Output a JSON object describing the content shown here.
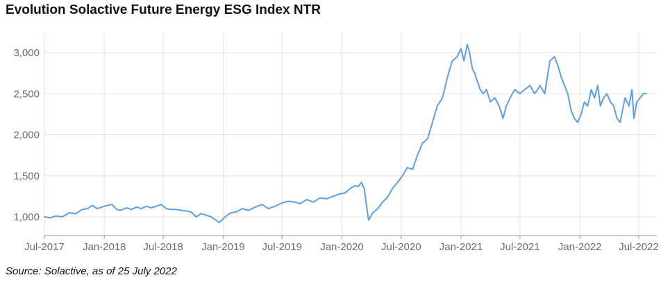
{
  "chart_data": {
    "type": "line",
    "title": "Evolution Solactive Future Energy ESG Index NTR",
    "source": "Source: Solactive, as of 25 July 2022",
    "xlabel": "",
    "ylabel": "",
    "ylim": [
      850,
      3150
    ],
    "grid": true,
    "legend": "none",
    "line_color": "#5b9ee9",
    "grid_color": "#e3e3e3",
    "y_ticks": [
      {
        "value": 1000,
        "label": "1,000"
      },
      {
        "value": 1500,
        "label": "1,500"
      },
      {
        "value": 2000,
        "label": "2,000"
      },
      {
        "value": 2500,
        "label": "2,500"
      },
      {
        "value": 3000,
        "label": "3,000"
      }
    ],
    "x_ticks": [
      {
        "date": "2017-07-01",
        "label": "Jul-2017"
      },
      {
        "date": "2018-01-01",
        "label": "Jan-2018"
      },
      {
        "date": "2018-07-01",
        "label": "Jul-2018"
      },
      {
        "date": "2019-01-01",
        "label": "Jan-2019"
      },
      {
        "date": "2019-07-01",
        "label": "Jul-2019"
      },
      {
        "date": "2020-01-01",
        "label": "Jan-2020"
      },
      {
        "date": "2020-07-01",
        "label": "Jul-2020"
      },
      {
        "date": "2021-01-01",
        "label": "Jan-2021"
      },
      {
        "date": "2021-07-01",
        "label": "Jul-2021"
      },
      {
        "date": "2022-01-01",
        "label": "Jan-2022"
      },
      {
        "date": "2022-07-01",
        "label": "Jul-2022"
      }
    ],
    "series": [
      {
        "x": [
          "2017-07-01",
          "2017-07-20",
          "2017-08-05",
          "2017-08-25",
          "2017-09-15",
          "2017-10-05",
          "2017-10-25",
          "2017-11-10",
          "2017-11-25",
          "2017-12-10",
          "2017-12-25",
          "2018-01-10",
          "2018-01-25",
          "2018-02-08",
          "2018-02-20",
          "2018-03-10",
          "2018-03-25",
          "2018-04-10",
          "2018-04-25",
          "2018-05-10",
          "2018-05-25",
          "2018-06-10",
          "2018-06-25",
          "2018-07-10",
          "2018-07-25",
          "2018-08-10",
          "2018-08-25",
          "2018-09-10",
          "2018-09-25",
          "2018-10-10",
          "2018-10-25",
          "2018-11-10",
          "2018-11-25",
          "2018-12-10",
          "2018-12-20",
          "2018-12-28",
          "2019-01-10",
          "2019-01-25",
          "2019-02-10",
          "2019-03-01",
          "2019-03-20",
          "2019-04-10",
          "2019-05-01",
          "2019-05-20",
          "2019-06-10",
          "2019-07-01",
          "2019-07-20",
          "2019-08-10",
          "2019-08-25",
          "2019-09-15",
          "2019-10-05",
          "2019-10-25",
          "2019-11-15",
          "2019-12-05",
          "2019-12-25",
          "2020-01-10",
          "2020-01-25",
          "2020-02-10",
          "2020-02-20",
          "2020-03-01",
          "2020-03-10",
          "2020-03-16",
          "2020-03-23",
          "2020-04-05",
          "2020-04-20",
          "2020-05-05",
          "2020-05-20",
          "2020-06-05",
          "2020-06-20",
          "2020-07-05",
          "2020-07-20",
          "2020-08-05",
          "2020-08-20",
          "2020-09-05",
          "2020-09-20",
          "2020-10-05",
          "2020-10-20",
          "2020-11-05",
          "2020-11-20",
          "2020-12-05",
          "2020-12-20",
          "2021-01-01",
          "2021-01-10",
          "2021-01-20",
          "2021-01-26",
          "2021-02-05",
          "2021-02-12",
          "2021-02-20",
          "2021-03-01",
          "2021-03-10",
          "2021-03-20",
          "2021-04-01",
          "2021-04-15",
          "2021-04-28",
          "2021-05-10",
          "2021-05-20",
          "2021-06-01",
          "2021-06-15",
          "2021-07-01",
          "2021-07-15",
          "2021-08-01",
          "2021-08-15",
          "2021-09-01",
          "2021-09-15",
          "2021-10-01",
          "2021-10-15",
          "2021-10-25",
          "2021-11-05",
          "2021-11-15",
          "2021-11-25",
          "2021-12-05",
          "2021-12-15",
          "2021-12-25",
          "2022-01-05",
          "2022-01-15",
          "2022-01-25",
          "2022-02-05",
          "2022-02-15",
          "2022-02-25",
          "2022-03-05",
          "2022-03-15",
          "2022-03-25",
          "2022-04-05",
          "2022-04-15",
          "2022-04-25",
          "2022-05-05",
          "2022-05-12",
          "2022-05-20",
          "2022-06-01",
          "2022-06-10",
          "2022-06-16",
          "2022-06-25",
          "2022-07-05",
          "2022-07-15",
          "2022-07-25"
        ],
        "values": [
          1000,
          990,
          1010,
          1000,
          1050,
          1040,
          1090,
          1100,
          1140,
          1100,
          1120,
          1140,
          1150,
          1090,
          1080,
          1110,
          1090,
          1120,
          1100,
          1130,
          1110,
          1130,
          1150,
          1100,
          1090,
          1090,
          1080,
          1070,
          1060,
          1000,
          1040,
          1020,
          1000,
          960,
          930,
          960,
          1010,
          1050,
          1060,
          1100,
          1080,
          1120,
          1150,
          1100,
          1130,
          1170,
          1190,
          1180,
          1160,
          1210,
          1180,
          1230,
          1220,
          1250,
          1280,
          1290,
          1340,
          1380,
          1370,
          1420,
          1340,
          1150,
          960,
          1050,
          1100,
          1180,
          1240,
          1350,
          1420,
          1500,
          1600,
          1580,
          1750,
          1900,
          1950,
          2150,
          2350,
          2450,
          2700,
          2900,
          2950,
          3050,
          2900,
          3100,
          3020,
          2800,
          2750,
          2650,
          2550,
          2500,
          2550,
          2400,
          2450,
          2350,
          2200,
          2350,
          2450,
          2550,
          2500,
          2550,
          2600,
          2500,
          2600,
          2500,
          2900,
          2950,
          2850,
          2700,
          2600,
          2500,
          2300,
          2200,
          2150,
          2250,
          2400,
          2350,
          2550,
          2450,
          2600,
          2350,
          2450,
          2500,
          2400,
          2350,
          2200,
          2150,
          2300,
          2450,
          2350,
          2550,
          2200,
          2400,
          2450,
          2500,
          2500
        ]
      }
    ]
  }
}
